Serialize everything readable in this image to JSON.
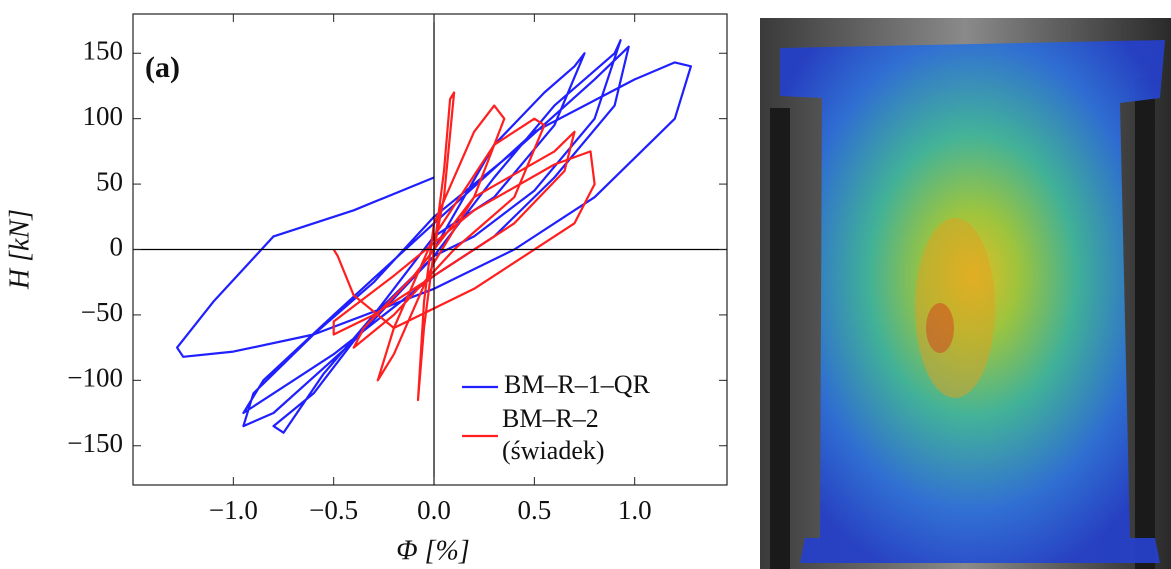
{
  "chart_data": {
    "type": "line",
    "annotation": "(a)",
    "x_label": "Φ [%]",
    "y_label": "H [kN]",
    "xlim": [
      -1.5,
      1.46
    ],
    "ylim": [
      -180,
      180
    ],
    "xticks": [
      {
        "value": -1.0,
        "label": "−1.0"
      },
      {
        "value": -0.5,
        "label": "−0.5"
      },
      {
        "value": 0.0,
        "label": "0.0"
      },
      {
        "value": 0.5,
        "label": "0.5"
      },
      {
        "value": 1.0,
        "label": "1.0"
      }
    ],
    "yticks": [
      {
        "value": -150,
        "label": "−150"
      },
      {
        "value": -100,
        "label": "−100"
      },
      {
        "value": -50,
        "label": "−50"
      },
      0,
      50,
      100,
      150
    ],
    "series": [
      {
        "name": "BM–R–1–QR",
        "color": "#1f1fff",
        "x": [
          0,
          0.3,
          0.55,
          0.7,
          0.75,
          0.6,
          0.3,
          0,
          -0.3,
          -0.6,
          -0.8,
          -0.75,
          -0.55,
          -0.3,
          0,
          0.3,
          0.6,
          0.9,
          0.93,
          0.8,
          0.5,
          0.2,
          0,
          -0.4,
          -0.8,
          -0.95,
          -0.9,
          -0.6,
          -0.3,
          0,
          0.4,
          0.8,
          0.97,
          0.9,
          0.6,
          0.3,
          0,
          -0.5,
          -0.9,
          -0.95,
          -0.85,
          -0.5,
          0,
          0.5,
          1.0,
          1.2,
          1.28,
          1.2,
          0.8,
          0.4,
          0,
          -0.6,
          -1.0,
          -1.25,
          -1.28,
          -1.1,
          -0.8,
          -0.4,
          0
        ],
        "values": [
          0,
          80,
          120,
          140,
          150,
          95,
          40,
          10,
          -50,
          -110,
          -135,
          -140,
          -95,
          -50,
          -5,
          55,
          110,
          150,
          160,
          100,
          45,
          10,
          -5,
          -70,
          -125,
          -135,
          -110,
          -65,
          -25,
          25,
          75,
          130,
          155,
          110,
          55,
          10,
          -20,
          -80,
          -120,
          -125,
          -100,
          -50,
          20,
          90,
          130,
          143,
          140,
          100,
          40,
          0,
          -30,
          -65,
          -78,
          -82,
          -75,
          -40,
          10,
          30,
          55
        ]
      },
      {
        "name": "BM–R–2 (świadek)",
        "color": "#ff1f1f",
        "x": [
          0,
          0.05,
          0.08,
          0.1,
          0.05,
          0,
          -0.05,
          -0.08,
          -0.05,
          0,
          0.2,
          0.3,
          0.35,
          0.2,
          0,
          -0.2,
          -0.28,
          -0.2,
          0,
          0.3,
          0.5,
          0.55,
          0.4,
          0.1,
          -0.2,
          -0.4,
          -0.35,
          -0.1,
          0.2,
          0.6,
          0.7,
          0.65,
          0.4,
          0,
          -0.3,
          -0.5,
          -0.5,
          -0.2,
          0.2,
          0.6,
          0.78,
          0.8,
          0.7,
          0.4,
          0.2,
          0,
          -0.2,
          -0.4,
          -0.48,
          -0.5
        ],
        "values": [
          0,
          60,
          115,
          120,
          40,
          0,
          -60,
          -115,
          -40,
          20,
          90,
          110,
          100,
          40,
          -10,
          -80,
          -100,
          -60,
          10,
          80,
          100,
          95,
          40,
          0,
          -50,
          -75,
          -60,
          -20,
          40,
          75,
          90,
          60,
          20,
          -20,
          -50,
          -65,
          -55,
          -20,
          30,
          65,
          75,
          50,
          20,
          -10,
          -30,
          -45,
          -60,
          -35,
          -5,
          0
        ]
      }
    ]
  }
}
